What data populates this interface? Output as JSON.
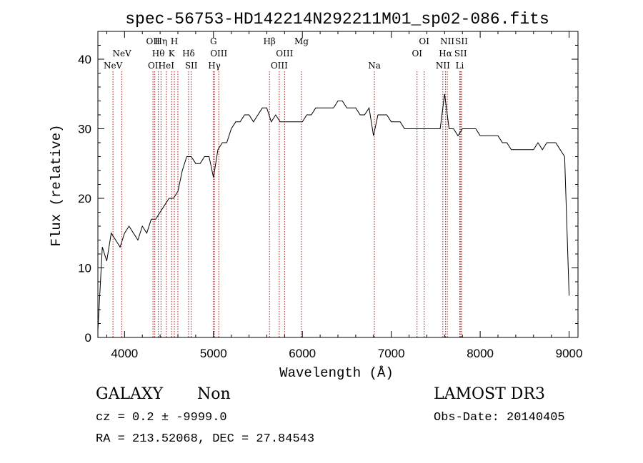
{
  "chart_data": {
    "type": "line",
    "title": "spec-56753-HD142214N292211M01_sp02-086.fits",
    "xlabel": "Wavelength (Å)",
    "ylabel": "Flux (relative)",
    "xlim": [
      3700,
      9100
    ],
    "ylim": [
      0,
      44
    ],
    "x_ticks": [
      "4000",
      "5000",
      "6000",
      "7000",
      "8000",
      "9000"
    ],
    "y_ticks": [
      "0",
      "10",
      "20",
      "30",
      "40"
    ],
    "grid": false,
    "legend": "none",
    "line_color": "#000000",
    "marker_color": "#b22222",
    "series": [
      {
        "x": [
          3700,
          3750,
          3800,
          3850,
          3900,
          3950,
          4000,
          4050,
          4100,
          4150,
          4200,
          4250,
          4300,
          4350,
          4400,
          4450,
          4500,
          4550,
          4600,
          4650,
          4700,
          4750,
          4800,
          4850,
          4900,
          4950,
          5000,
          5050,
          5100,
          5150,
          5200,
          5250,
          5300,
          5350,
          5400,
          5450,
          5500,
          5550,
          5600,
          5650,
          5700,
          5750,
          5800,
          5850,
          5900,
          5950,
          6000,
          6050,
          6100,
          6150,
          6200,
          6250,
          6300,
          6350,
          6400,
          6450,
          6500,
          6550,
          6600,
          6650,
          6700,
          6750,
          6800,
          6850,
          6900,
          6950,
          7000,
          7050,
          7100,
          7150,
          7200,
          7250,
          7300,
          7350,
          7400,
          7450,
          7500,
          7550,
          7600,
          7650,
          7700,
          7750,
          7800,
          7850,
          7900,
          7950,
          8000,
          8050,
          8100,
          8150,
          8200,
          8250,
          8300,
          8350,
          8400,
          8450,
          8500,
          8550,
          8600,
          8650,
          8700,
          8750,
          8800,
          8850,
          8900,
          8950,
          9000
        ],
        "y": [
          1,
          13,
          11,
          15,
          14,
          13,
          15,
          16,
          15,
          14,
          16,
          15,
          17,
          17,
          18,
          19,
          20,
          20,
          21,
          24,
          26,
          26,
          25,
          25,
          26,
          26,
          23,
          27,
          28,
          28,
          30,
          31,
          31,
          32,
          32,
          31,
          32,
          33,
          33,
          31,
          32,
          31,
          31,
          31,
          31,
          31,
          31,
          32,
          32,
          33,
          33,
          33,
          33,
          33,
          34,
          34,
          33,
          33,
          33,
          32,
          32,
          33,
          29,
          32,
          32,
          32,
          31,
          31,
          31,
          30,
          30,
          30,
          30,
          30,
          30,
          30,
          30,
          30,
          35,
          30,
          30,
          29,
          30,
          30,
          30,
          30,
          29,
          29,
          29,
          29,
          29,
          28,
          28,
          27,
          27,
          27,
          27,
          27,
          27,
          28,
          27,
          28,
          28,
          28,
          27,
          26,
          6
        ]
      }
    ],
    "lines": [
      {
        "w": 3870,
        "label": "NeV",
        "row": 3
      },
      {
        "w": 3970,
        "label": "NeV",
        "row": 2
      },
      {
        "w": 4320,
        "label": "OII",
        "row": 1
      },
      {
        "w": 4340,
        "label": "OII",
        "row": 3
      },
      {
        "w": 4380,
        "label": "Hθ",
        "row": 2
      },
      {
        "w": 4410,
        "label": "Hη",
        "row": 1
      },
      {
        "w": 4470,
        "label": "HeI",
        "row": 3
      },
      {
        "w": 4530,
        "label": "K",
        "row": 2
      },
      {
        "w": 4560,
        "label": "H",
        "row": 1
      },
      {
        "w": 4600,
        "label": "",
        "row": 0
      },
      {
        "w": 4720,
        "label": "Hδ",
        "row": 2
      },
      {
        "w": 4750,
        "label": "SII",
        "row": 3
      },
      {
        "w": 5000,
        "label": "G",
        "row": 1
      },
      {
        "w": 5010,
        "label": "Hγ",
        "row": 3
      },
      {
        "w": 5060,
        "label": "OIII",
        "row": 2
      },
      {
        "w": 5630,
        "label": "Hβ",
        "row": 1
      },
      {
        "w": 5740,
        "label": "OIII",
        "row": 3
      },
      {
        "w": 5800,
        "label": "OIII",
        "row": 2
      },
      {
        "w": 5990,
        "label": "Mg",
        "row": 1
      },
      {
        "w": 6810,
        "label": "Na",
        "row": 3
      },
      {
        "w": 7290,
        "label": "OI",
        "row": 2
      },
      {
        "w": 7370,
        "label": "OI",
        "row": 1
      },
      {
        "w": 7580,
        "label": "NII",
        "row": 3
      },
      {
        "w": 7610,
        "label": "Hα",
        "row": 2
      },
      {
        "w": 7630,
        "label": "NII",
        "row": 1
      },
      {
        "w": 7770,
        "label": "Li",
        "row": 3
      },
      {
        "w": 7780,
        "label": "SII",
        "row": 2
      },
      {
        "w": 7790,
        "label": "SII",
        "row": 1
      }
    ]
  },
  "footer": {
    "class_label": "GALAXY",
    "subclass_label": "Non",
    "cz_line": "cz = 0.2 ± -9999.0",
    "radec_line": "RA = 213.52068, DEC =  27.84543",
    "survey": "LAMOST DR3",
    "obs_date": "Obs-Date: 20140405"
  }
}
